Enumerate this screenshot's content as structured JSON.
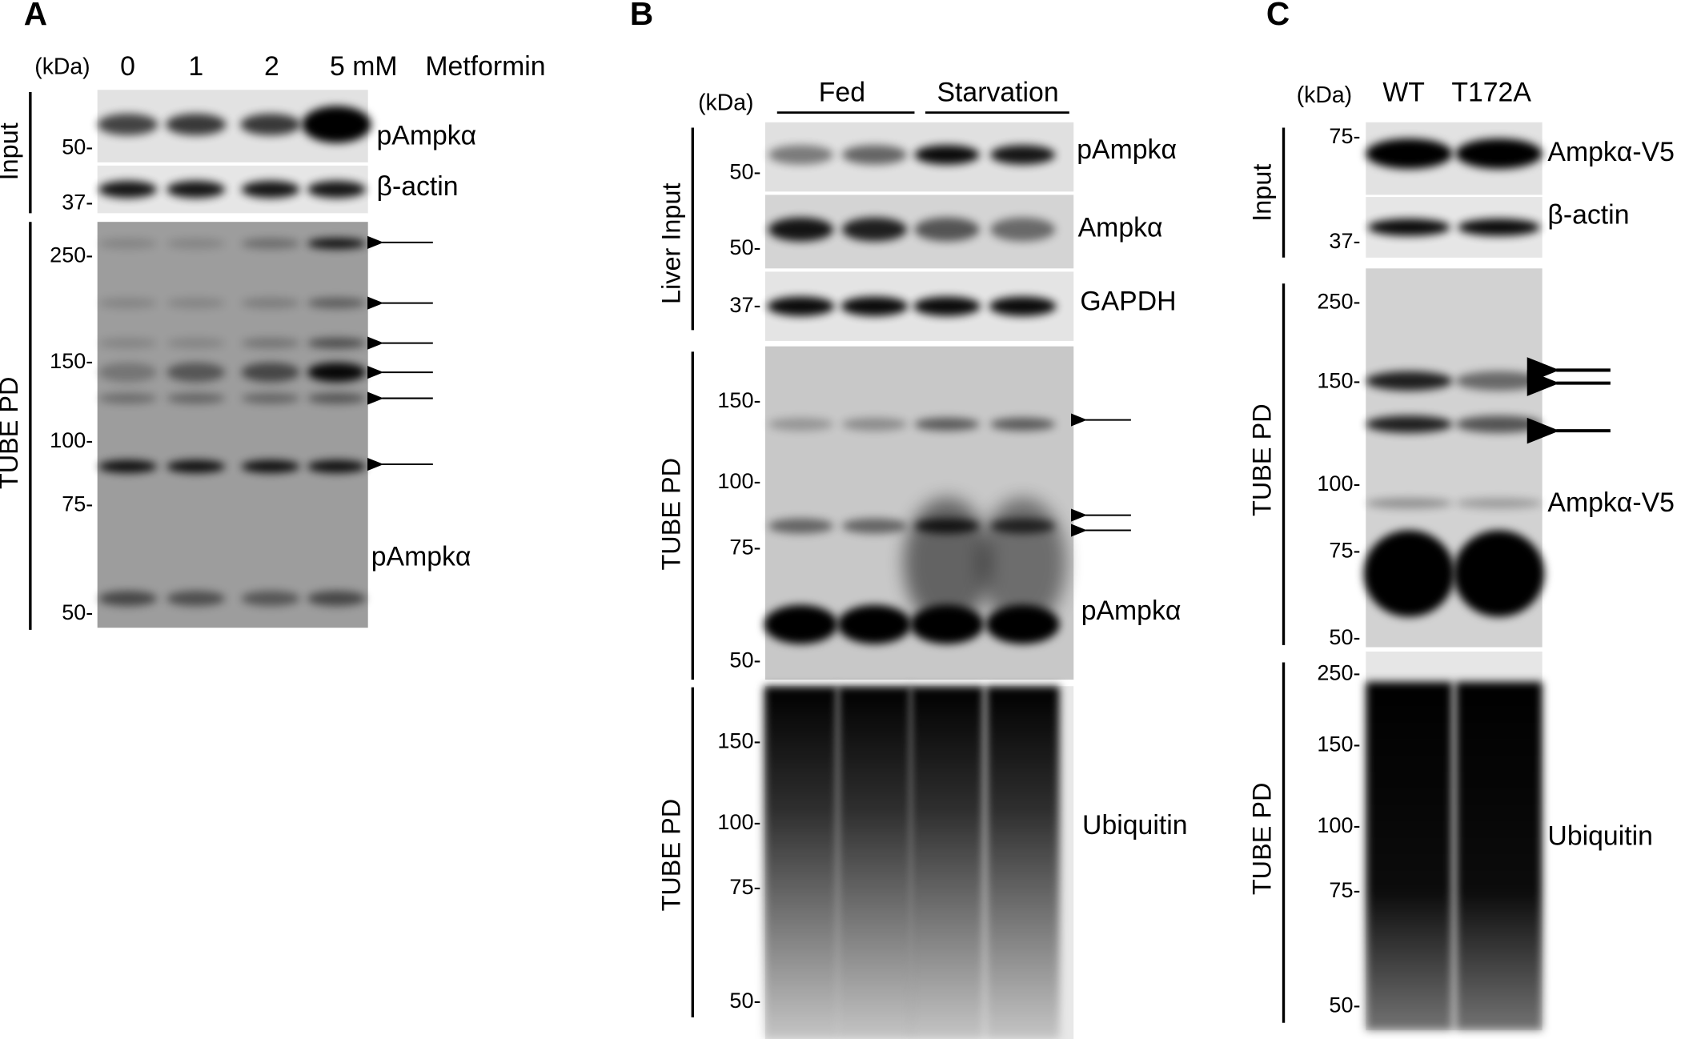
{
  "panels": [
    {
      "label": "A",
      "unit": "(kDa)",
      "lanes": [
        "0",
        "1",
        "2",
        "5 mM"
      ],
      "treatment": "Metformin",
      "side_labels": [
        "Input",
        "TUBE PD"
      ],
      "blots": [
        {
          "label": "pAmpkα",
          "markers": [
            "50-"
          ]
        },
        {
          "label": "β-actin",
          "markers": [
            "37-"
          ]
        },
        {
          "label": "pAmpkα",
          "markers": [
            "250-",
            "150-",
            "100-",
            "75-",
            "50-"
          ]
        }
      ]
    },
    {
      "label": "B",
      "unit": "(kDa)",
      "groups": [
        "Fed",
        "Starvation"
      ],
      "side_labels": [
        "Liver Input",
        "TUBE PD",
        "TUBE PD"
      ],
      "blots": [
        {
          "label": "pAmpkα",
          "markers": [
            "50-"
          ]
        },
        {
          "label": "Ampkα",
          "markers": [
            "50-"
          ]
        },
        {
          "label": "GAPDH",
          "markers": [
            "37-"
          ]
        },
        {
          "label": "pAmpkα",
          "markers": [
            "150-",
            "100-",
            "75-",
            "50-"
          ]
        },
        {
          "label": "Ubiquitin",
          "markers": [
            "150-",
            "100-",
            "75-",
            "50-"
          ]
        }
      ]
    },
    {
      "label": "C",
      "unit": "(kDa)",
      "lanes": [
        "WT",
        "T172A"
      ],
      "side_labels": [
        "Input",
        "TUBE PD",
        "TUBE PD"
      ],
      "blots": [
        {
          "label": "Ampkα-V5",
          "markers": [
            "75-"
          ]
        },
        {
          "label": "β-actin",
          "markers": [
            "37-"
          ]
        },
        {
          "label": "Ampkα-V5",
          "markers": [
            "250-",
            "150-",
            "100-",
            "75-",
            "50-"
          ]
        },
        {
          "label": "Ubiquitin",
          "markers": [
            "250-",
            "150-",
            "100-",
            "75-",
            "50-"
          ]
        }
      ]
    }
  ]
}
